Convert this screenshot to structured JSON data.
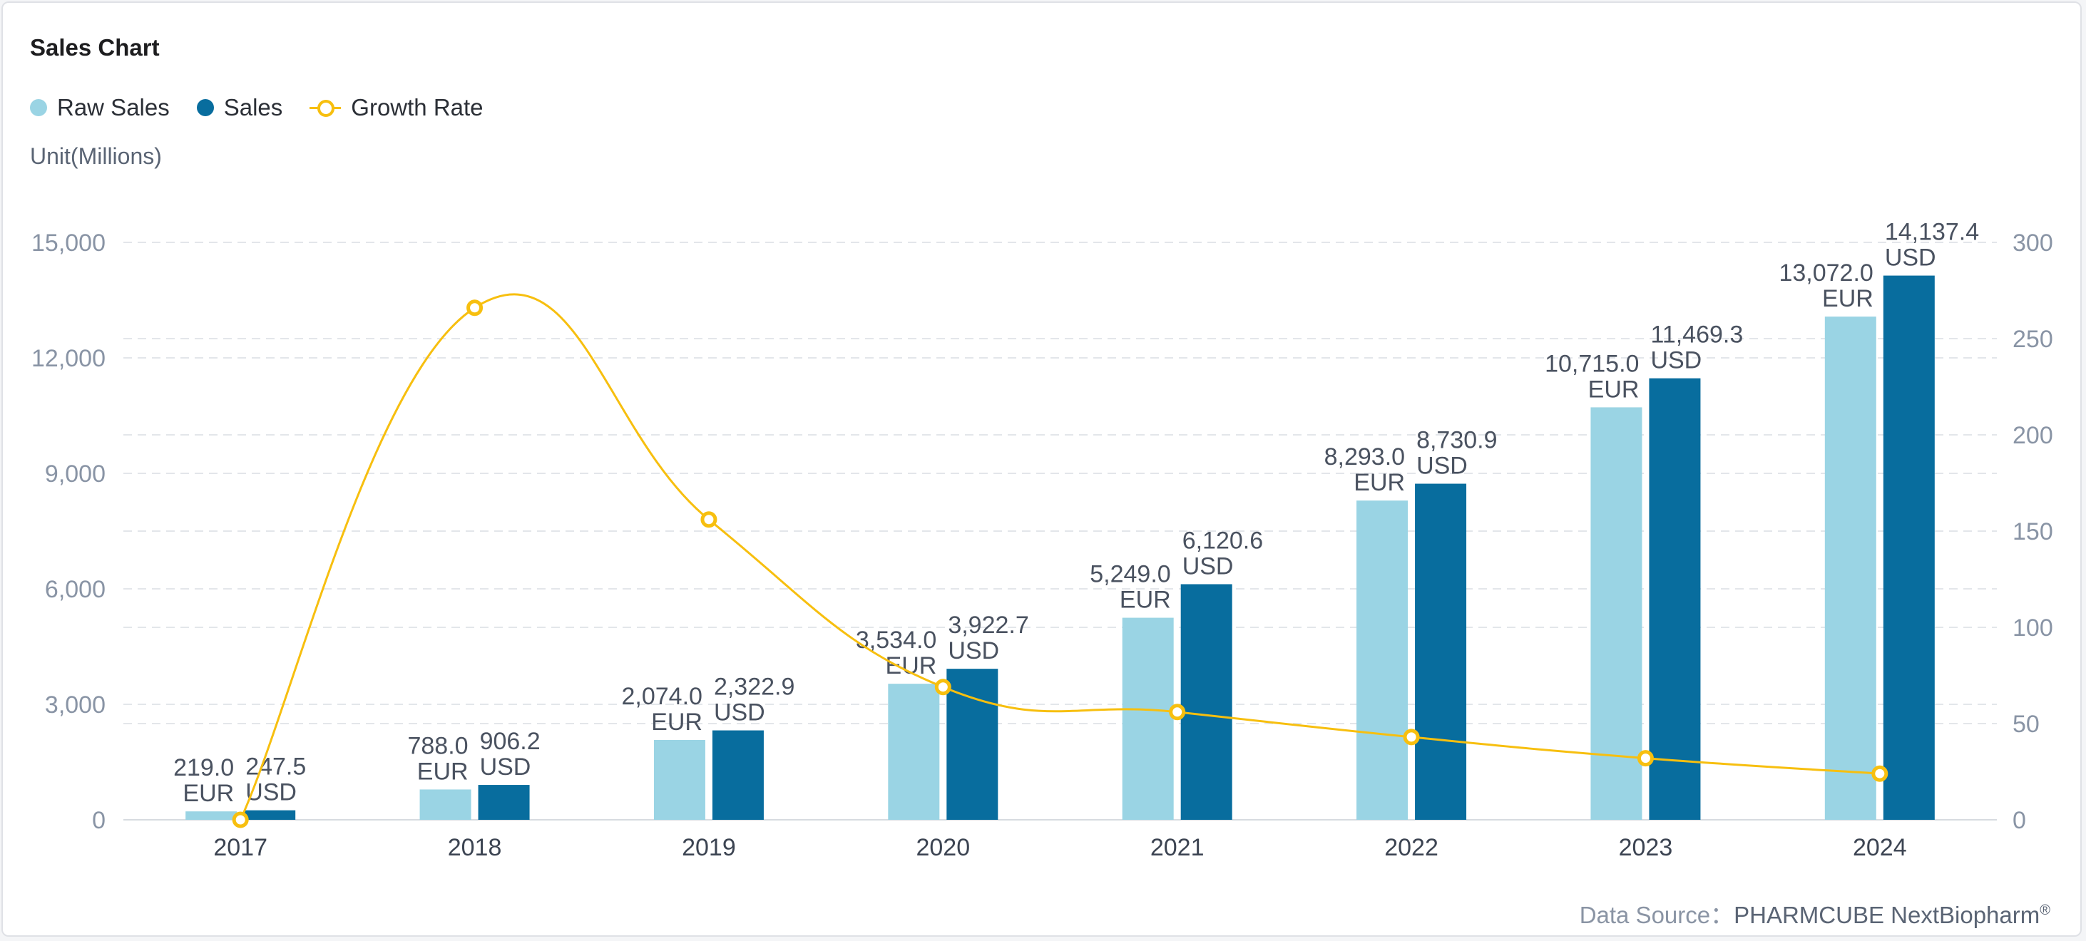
{
  "chart_data": {
    "type": "bar",
    "title": "Sales Chart",
    "unit_label": "Unit(Millions)",
    "categories": [
      "2017",
      "2018",
      "2019",
      "2020",
      "2021",
      "2022",
      "2023",
      "2024"
    ],
    "series": [
      {
        "name": "Raw Sales",
        "type": "bar",
        "axis": "left",
        "color": "#9ad4e4",
        "values": [
          219.0,
          788.0,
          2074.0,
          3534.0,
          5249.0,
          8293.0,
          10715.0,
          13072.0
        ],
        "value_labels": [
          "219.0",
          "788.0",
          "2,074.0",
          "3,534.0",
          "5,249.0",
          "8,293.0",
          "10,715.0",
          "13,072.0"
        ],
        "currency": "EUR"
      },
      {
        "name": "Sales",
        "type": "bar",
        "axis": "left",
        "color": "#086d9e",
        "values": [
          247.5,
          906.2,
          2322.9,
          3922.7,
          6120.6,
          8730.9,
          11469.3,
          14137.4
        ],
        "value_labels": [
          "247.5",
          "906.2",
          "2,322.9",
          "3,922.7",
          "6,120.6",
          "8,730.9",
          "11,469.3",
          "14,137.4"
        ],
        "currency": "USD"
      },
      {
        "name": "Growth Rate",
        "type": "line",
        "axis": "right",
        "color": "#f7bf0f",
        "values": [
          0,
          266,
          156,
          69,
          56,
          43,
          32,
          24
        ]
      }
    ],
    "y_left": {
      "range": [
        0,
        15000
      ],
      "ticks": [
        "0",
        "3,000",
        "6,000",
        "9,000",
        "12,000",
        "15,000"
      ]
    },
    "y_right": {
      "range": [
        0,
        300
      ],
      "ticks": [
        "0",
        "50",
        "100",
        "150",
        "200",
        "250",
        "300"
      ]
    },
    "grid": true,
    "legend_position": "top-left"
  },
  "footer": {
    "source_label": "Data Source：",
    "source_value": "PHARMCUBE NextBiopharm",
    "source_mark": "®"
  }
}
